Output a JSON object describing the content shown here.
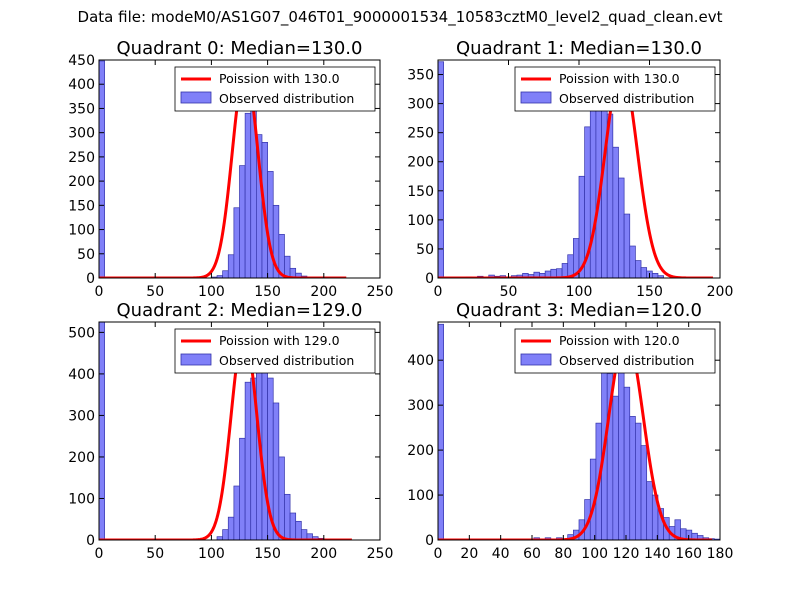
{
  "suptitle": "Data file: modeM0/AS1G07_046T01_9000001534_10583cztM0_level2_quad_clean.evt",
  "colors": {
    "hist_fill": "#8080f8",
    "hist_edge": "#3333aa",
    "poisson": "#ff0000",
    "axis": "#000000"
  },
  "chart_data": [
    {
      "type": "bar",
      "title": "Quadrant 0: Median=130.0",
      "median": 130.0,
      "xlim": [
        0,
        250
      ],
      "ylim": [
        0,
        450
      ],
      "xticks": [
        0,
        50,
        100,
        150,
        200,
        250
      ],
      "yticks": [
        0,
        50,
        100,
        150,
        200,
        250,
        300,
        350,
        400,
        450
      ],
      "legend": {
        "placement": "top-right",
        "entries": [
          "Poission with 130.0",
          "Observed distribution"
        ]
      },
      "bins": {
        "start": 0,
        "width": 5,
        "values": [
          448,
          0,
          0,
          0,
          0,
          0,
          0,
          0,
          0,
          0,
          0,
          0,
          0,
          0,
          0,
          0,
          0,
          0,
          0,
          0,
          2,
          5,
          15,
          48,
          145,
          232,
          340,
          372,
          296,
          280,
          220,
          150,
          90,
          45,
          20,
          10,
          4,
          2,
          0,
          0,
          0,
          0,
          0,
          0,
          0,
          0,
          0,
          0,
          0,
          0
        ]
      },
      "poisson": {
        "peak": 430,
        "center": 130,
        "x_start": 0,
        "x_end": 220
      }
    },
    {
      "type": "bar",
      "title": "Quadrant 1: Median=130.0",
      "median": 130.0,
      "xlim": [
        0,
        200
      ],
      "ylim": [
        0,
        375
      ],
      "xticks": [
        0,
        50,
        100,
        150,
        200
      ],
      "yticks": [
        0,
        50,
        100,
        150,
        200,
        250,
        300,
        350
      ],
      "legend": {
        "placement": "top-right",
        "entries": [
          "Poission with 130.0",
          "Observed distribution"
        ]
      },
      "bins": {
        "start": 0,
        "width": 4,
        "values": [
          372,
          0,
          0,
          0,
          0,
          2,
          0,
          3,
          0,
          5,
          3,
          4,
          0,
          4,
          5,
          8,
          6,
          10,
          8,
          12,
          15,
          16,
          25,
          40,
          68,
          175,
          260,
          330,
          325,
          315,
          282,
          225,
          172,
          110,
          55,
          30,
          18,
          12,
          8,
          4
        ]
      },
      "poisson": {
        "peak": 360,
        "center": 130,
        "x_start": 0,
        "x_end": 195
      }
    },
    {
      "type": "bar",
      "title": "Quadrant 2: Median=129.0",
      "median": 129.0,
      "xlim": [
        0,
        250
      ],
      "ylim": [
        0,
        525
      ],
      "xticks": [
        0,
        50,
        100,
        150,
        200,
        250
      ],
      "yticks": [
        0,
        100,
        200,
        300,
        400,
        500
      ],
      "legend": {
        "placement": "top-right",
        "entries": [
          "Poission with 129.0",
          "Observed distribution"
        ]
      },
      "bins": {
        "start": 0,
        "width": 5,
        "values": [
          525,
          0,
          0,
          0,
          0,
          0,
          0,
          0,
          0,
          0,
          0,
          0,
          0,
          0,
          0,
          0,
          0,
          0,
          0,
          0,
          0,
          8,
          25,
          55,
          130,
          245,
          380,
          390,
          500,
          420,
          390,
          330,
          200,
          110,
          65,
          45,
          25,
          15,
          8,
          4,
          2,
          0,
          0,
          0,
          0,
          0,
          0,
          0,
          0,
          0
        ]
      },
      "poisson": {
        "peak": 500,
        "center": 129,
        "x_start": 0,
        "x_end": 225
      }
    },
    {
      "type": "bar",
      "title": "Quadrant 3: Median=120.0",
      "median": 120.0,
      "xlim": [
        0,
        180
      ],
      "ylim": [
        0,
        485
      ],
      "xticks": [
        0,
        20,
        40,
        60,
        80,
        100,
        120,
        140,
        160,
        180
      ],
      "yticks": [
        0,
        100,
        200,
        300,
        400
      ],
      "legend": {
        "placement": "top-right",
        "entries": [
          "Poission with 120.0",
          "Observed distribution"
        ]
      },
      "bins": {
        "start": 0,
        "width": 3.6,
        "values": [
          480,
          0,
          0,
          0,
          0,
          0,
          0,
          0,
          0,
          0,
          0,
          0,
          0,
          0,
          0,
          0,
          0,
          5,
          0,
          5,
          0,
          5,
          0,
          12,
          22,
          45,
          90,
          180,
          260,
          400,
          370,
          320,
          455,
          340,
          275,
          260,
          210,
          130,
          100,
          70,
          50,
          30,
          45,
          25,
          22,
          15,
          10,
          5,
          3,
          2
        ]
      },
      "poisson": {
        "peak": 455,
        "center": 120,
        "x_start": 0,
        "x_end": 175
      }
    }
  ]
}
